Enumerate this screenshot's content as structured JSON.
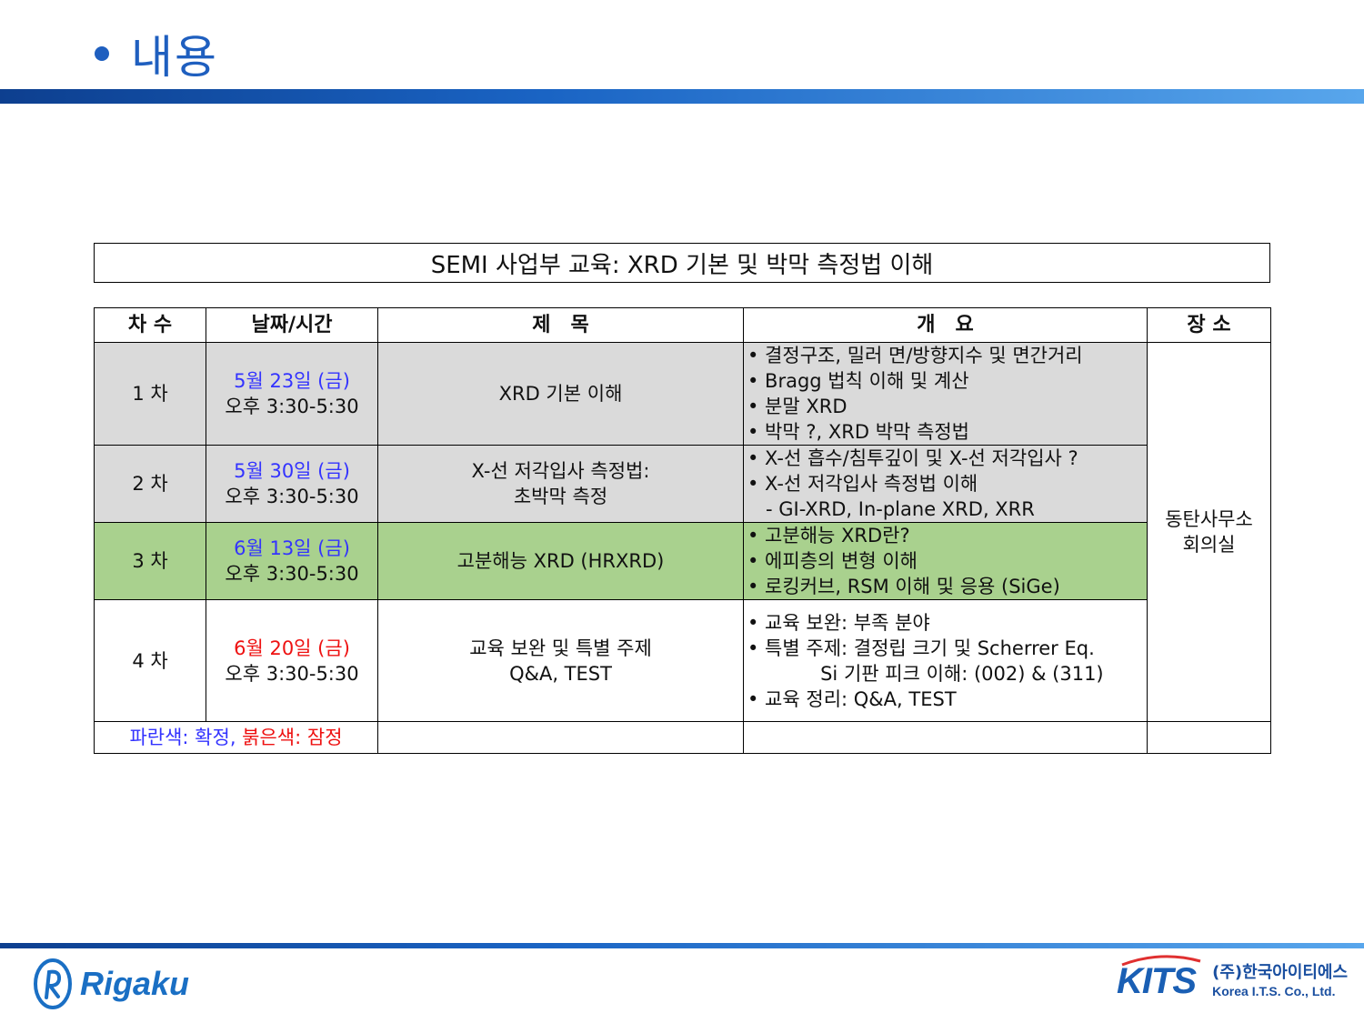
{
  "slide": {
    "title": "내용",
    "course_title": "SEMI 사업부 교육: XRD 기본 및 박막 측정법 이해"
  },
  "table": {
    "headers": [
      "차 수",
      "날짜/시간",
      "제　목",
      "개　요",
      "장 소"
    ],
    "location": [
      "동탄사무소",
      "회의실"
    ],
    "rows": [
      {
        "session": "1 차",
        "date": "5월 23일 (금)",
        "time": "오후 3:30-5:30",
        "title": [
          "XRD 기본 이해"
        ],
        "overview": [
          "• 결정구조, 밀러 면/방향지수 및 면간거리",
          "• Bragg 법칙 이해 및 계산",
          "• 분말 XRD",
          "• 박막 ?, XRD 박막 측정법"
        ]
      },
      {
        "session": "2 차",
        "date": "5월 30일 (금)",
        "time": "오후 3:30-5:30",
        "title": [
          "X-선 저각입사 측정법:",
          "초박막 측정"
        ],
        "overview": [
          "• X-선 흡수/침투깊이 및 X-선 저각입사 ?",
          "• X-선 저각입사 측정법 이해",
          "   - GI-XRD, In-plane XRD, XRR"
        ]
      },
      {
        "session": "3 차",
        "date": "6월 13일 (금)",
        "time": "오후 3:30-5:30",
        "title": [
          "고분해능 XRD (HRXRD)"
        ],
        "overview": [
          "• 고분해능 XRD란?",
          "• 에피층의 변형 이해",
          "• 로킹커브, RSM 이해 및 응용 (SiGe)"
        ]
      },
      {
        "session": "4 차",
        "date": "6월 20일 (금)",
        "time": "오후 3:30-5:30",
        "title": [
          "교육 보완 및 특별 주제",
          "Q&A, TEST"
        ],
        "overview": [
          "• 교육 보완: 부족 분야",
          "• 특별 주제: 결정립 크기 및 Scherrer Eq.",
          "            Si 기판 피크 이해: (002) & (311)",
          "• 교육 정리: Q&A, TEST"
        ]
      }
    ],
    "legend": {
      "blue_text": "파란색: 확정, ",
      "red_text": "붉은색: 잠정"
    }
  },
  "footer": {
    "left_logo": "Rigaku",
    "right_logo_mark": "KITS",
    "right_logo_korean": "(주)한국아이티에스",
    "right_logo_english": "Korea I.T.S. Co., Ltd."
  },
  "colors": {
    "accent_blue": "#1f5fbf",
    "confirmed": "#3333ff",
    "tentative": "#ee1111",
    "gray_row": "#dadada",
    "green_row": "#a9d18e"
  }
}
